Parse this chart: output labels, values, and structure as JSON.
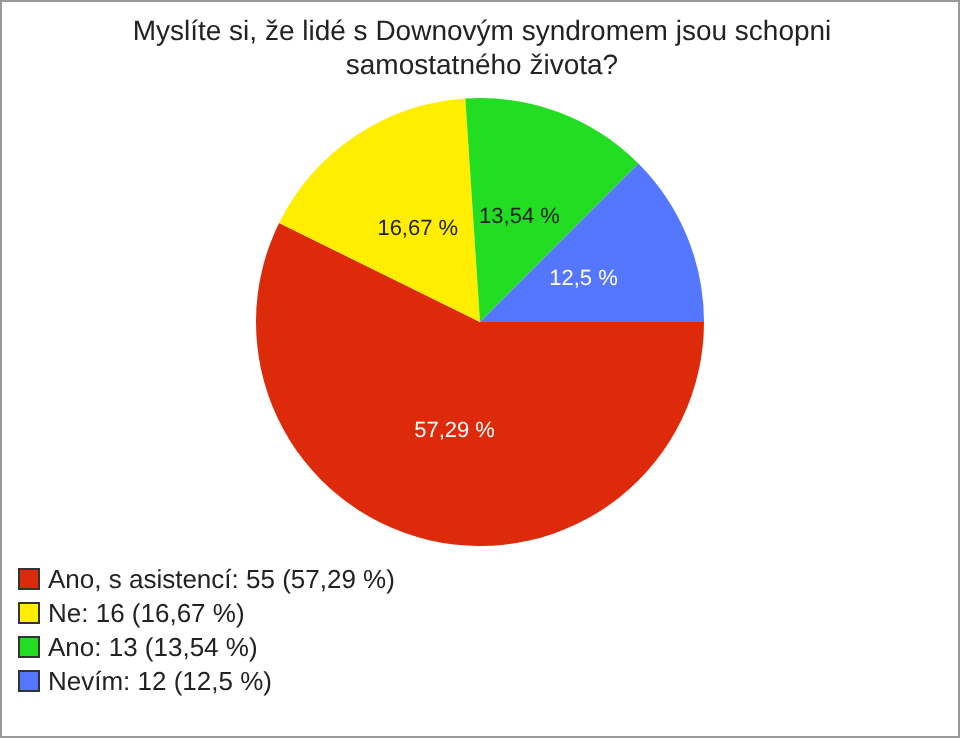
{
  "chart_data": {
    "type": "pie",
    "title": "Myslíte si, že lidé s Downovým syndromem jsou schopni samostatného života?",
    "categories": [
      "Ano, s asistencí: 55 (57,29 %)",
      "Ne: 16 (16,67 %)",
      "Ano: 13 (13,54 %)",
      "Nevím: 12 (12,5 %)"
    ],
    "values": [
      57.29,
      16.67,
      13.54,
      12.5
    ],
    "value_labels": [
      "57,29 %",
      "16,67 %",
      "13,54 %",
      "12,5 %"
    ],
    "colors": [
      "#dd2a0a",
      "#ffee00",
      "#22dd22",
      "#5577ff"
    ],
    "legend": "bottom left"
  }
}
